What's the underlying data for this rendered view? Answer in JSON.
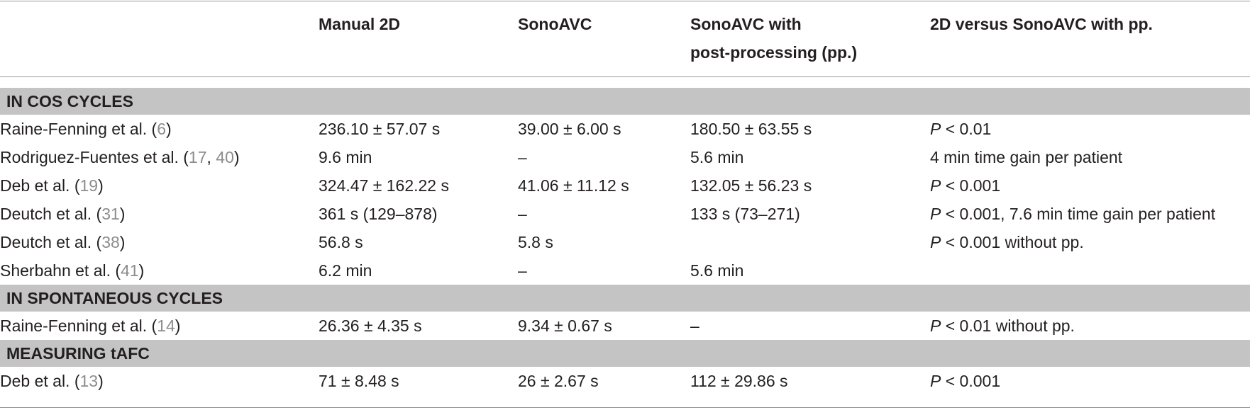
{
  "table": {
    "columns": [
      "",
      "Manual 2D",
      "SonoAVC",
      "SonoAVC with\npost-processing (pp.)",
      "2D versus SonoAVC with pp."
    ],
    "sections": [
      {
        "title": "IN COS CYCLES",
        "rows": [
          {
            "study": {
              "name": "Raine-Fenning et al. (",
              "refs": [
                "6"
              ],
              "close": ")"
            },
            "manual_2d": "236.10 ± 57.07 s",
            "sonoavc": "39.00 ± 6.00 s",
            "sonoavc_pp": "180.50 ± 63.55 s",
            "comparison": {
              "p": "P",
              "text": " < 0.01"
            }
          },
          {
            "study": {
              "name": "Rodriguez-Fuentes et al. (",
              "refs": [
                "17",
                "40"
              ],
              "close": ")"
            },
            "manual_2d": "9.6 min",
            "sonoavc": "–",
            "sonoavc_pp": "5.6 min",
            "comparison": {
              "p": "",
              "text": "4 min time gain per patient"
            }
          },
          {
            "study": {
              "name": "Deb et al. (",
              "refs": [
                "19"
              ],
              "close": ")"
            },
            "manual_2d": "324.47 ± 162.22 s",
            "sonoavc": "41.06 ± 11.12 s",
            "sonoavc_pp": "132.05 ± 56.23 s",
            "comparison": {
              "p": "P",
              "text": " < 0.001"
            }
          },
          {
            "study": {
              "name": "Deutch et al. (",
              "refs": [
                "31"
              ],
              "close": ")"
            },
            "manual_2d": "361 s (129–878)",
            "sonoavc": "–",
            "sonoavc_pp": "133 s (73–271)",
            "comparison": {
              "p": "P",
              "text": " < 0.001, 7.6 min time gain per patient"
            }
          },
          {
            "study": {
              "name": "Deutch et al. (",
              "refs": [
                "38"
              ],
              "close": ")"
            },
            "manual_2d": "56.8 s",
            "sonoavc": "5.8 s",
            "sonoavc_pp": "",
            "comparison": {
              "p": "P",
              "text": " < 0.001 without pp."
            }
          },
          {
            "study": {
              "name": "Sherbahn et al. (",
              "refs": [
                "41"
              ],
              "close": ")"
            },
            "manual_2d": "6.2 min",
            "sonoavc": "–",
            "sonoavc_pp": "5.6 min",
            "comparison": {
              "p": "",
              "text": ""
            }
          }
        ]
      },
      {
        "title": "IN SPONTANEOUS CYCLES",
        "rows": [
          {
            "study": {
              "name": "Raine-Fenning et al. (",
              "refs": [
                "14"
              ],
              "close": ")"
            },
            "manual_2d": "26.36 ± 4.35 s",
            "sonoavc": "9.34 ± 0.67 s",
            "sonoavc_pp": "–",
            "comparison": {
              "p": "P",
              "text": " < 0.01 without pp."
            }
          }
        ]
      },
      {
        "title": "MEASURING tAFC",
        "rows": [
          {
            "study": {
              "name": "Deb et al. (",
              "refs": [
                "13"
              ],
              "close": ")"
            },
            "manual_2d": "71 ± 8.48 s",
            "sonoavc": "26 ± 2.67 s",
            "sonoavc_pp": "112 ± 29.86 s",
            "comparison": {
              "p": "P",
              "text": " < 0.001"
            }
          }
        ]
      }
    ],
    "colors": {
      "section_band": "#c4c4c4",
      "rule": "#9a9a9a",
      "reference_link": "#8c8c8c",
      "text": "#231f20"
    }
  }
}
